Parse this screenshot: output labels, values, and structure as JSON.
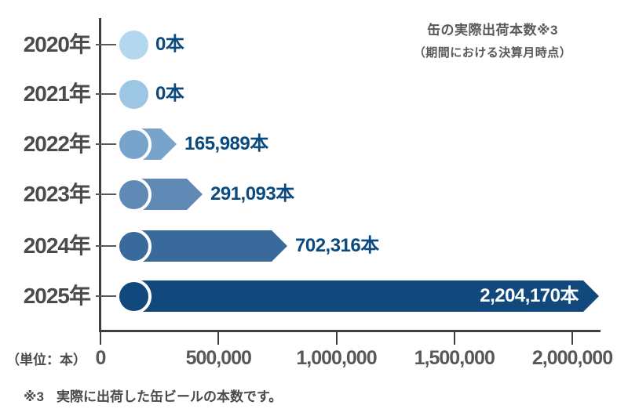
{
  "chart_data": {
    "type": "bar",
    "orientation": "horizontal",
    "title": "缶の実際出荷本数※3",
    "subtitle": "（期間における決算月時点）",
    "unit_label": "（単位：本）",
    "footnote": {
      "marker": "※3",
      "text": "実際に出荷した缶ビールの本数です。"
    },
    "categories": [
      "2020年",
      "2021年",
      "2022年",
      "2023年",
      "2024年",
      "2025年"
    ],
    "values": [
      0,
      0,
      165989,
      291093,
      702316,
      2204170
    ],
    "value_labels": [
      "0本",
      "0本",
      "165,989本",
      "291,093本",
      "702,316本",
      "2,204,170本"
    ],
    "label_inside": [
      false,
      false,
      false,
      false,
      false,
      true
    ],
    "bar_colors": [
      "#b3d7ef",
      "#9dc5e4",
      "#78a3cb",
      "#6089b6",
      "#3a699b",
      "#12497c"
    ],
    "value_label_color": "#0b4a7e",
    "value_label_inside_color": "#ffffff",
    "axis_color": "#3f3f3f",
    "xlim": [
      0,
      2125000
    ],
    "x_ticks": [
      {
        "value": 0,
        "label": "0"
      },
      {
        "value": 500000,
        "label": "500,000"
      },
      {
        "value": 1000000,
        "label": "1,000,000"
      },
      {
        "value": 1500000,
        "label": "1,500,000"
      },
      {
        "value": 2000000,
        "label": "2,000,000"
      }
    ],
    "grid": false,
    "legend": false
  }
}
